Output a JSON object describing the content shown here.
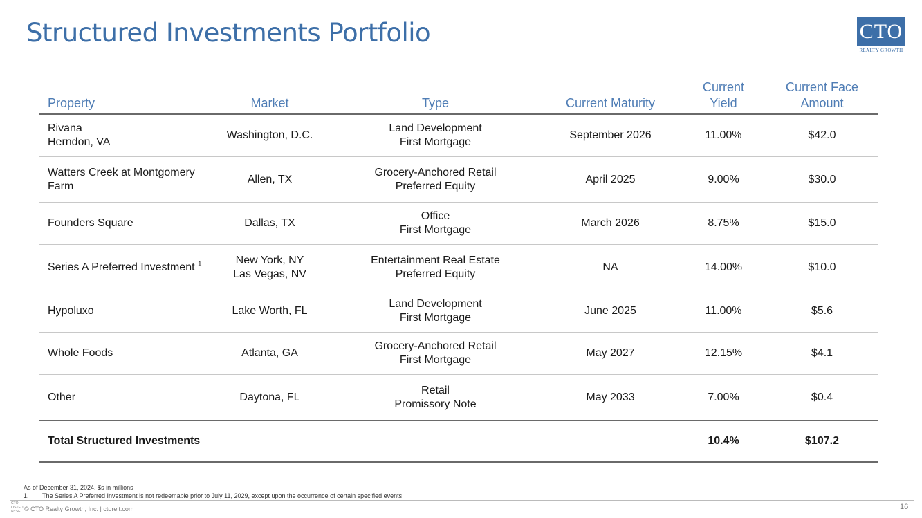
{
  "title": "Structured Investments Portfolio",
  "logo": {
    "text": "CTO",
    "tagline": "REALTY GROWTH",
    "color": "#3d6fa8"
  },
  "table": {
    "headers": {
      "property": "Property",
      "market": "Market",
      "type": "Type",
      "maturity": "Current Maturity",
      "yield_line1": "Current",
      "yield_line2": "Yield",
      "face_line1": "Current Face",
      "face_line2": "Amount"
    },
    "rows": [
      {
        "property_l1": "Rivana",
        "property_l2": "Herndon, VA",
        "market_l1": "Washington, D.C.",
        "market_l2": "",
        "type_l1": "Land Development",
        "type_l2": "First Mortgage",
        "maturity": "September 2026",
        "yield": "11.00%",
        "face": "$42.0"
      },
      {
        "property_l1": "Watters Creek at Montgomery",
        "property_l2": "Farm",
        "market_l1": "Allen, TX",
        "market_l2": "",
        "type_l1": "Grocery-Anchored Retail",
        "type_l2": "Preferred Equity",
        "maturity": "April 2025",
        "yield": "9.00%",
        "face": "$30.0"
      },
      {
        "property_l1": "Founders Square",
        "property_l2": "",
        "market_l1": "Dallas, TX",
        "market_l2": "",
        "type_l1": "Office",
        "type_l2": "First Mortgage",
        "maturity": "March 2026",
        "yield": "8.75%",
        "face": "$15.0"
      },
      {
        "property_l1": "Series A Preferred Investment",
        "property_sup": "1",
        "property_l2": "",
        "market_l1": "New York, NY",
        "market_l2": "Las Vegas, NV",
        "type_l1": "Entertainment Real Estate",
        "type_l2": "Preferred Equity",
        "maturity": "NA",
        "yield": "14.00%",
        "face": "$10.0"
      },
      {
        "property_l1": "Hypoluxo",
        "property_l2": "",
        "market_l1": "Lake Worth, FL",
        "market_l2": "",
        "type_l1": "Land Development",
        "type_l2": "First Mortgage",
        "maturity": "June 2025",
        "yield": "11.00%",
        "face": "$5.6"
      },
      {
        "property_l1": "Whole Foods",
        "property_l2": "",
        "market_l1": "Atlanta, GA",
        "market_l2": "",
        "type_l1": "Grocery-Anchored Retail",
        "type_l2": "First Mortgage",
        "maturity": "May 2027",
        "yield": "12.15%",
        "face": "$4.1"
      },
      {
        "property_l1": "Other",
        "property_l2": "",
        "market_l1": "Daytona, FL",
        "market_l2": "",
        "type_l1": "Retail",
        "type_l2": "Promissory Note",
        "maturity": "May 2033",
        "yield": "7.00%",
        "face": "$0.4"
      }
    ],
    "total": {
      "label": "Total Structured Investments",
      "yield": "10.4%",
      "face": "$107.2"
    }
  },
  "footnotes": {
    "note": "As of December 31, 2024. $s in millions",
    "fn1_num": "1.",
    "fn1_text": "The Series A Preferred Investment is not redeemable prior to July 11, 2029, except upon the occurrence of certain specified events"
  },
  "footer": {
    "mini_logo_l1": "CTO",
    "mini_logo_l2": "LISTED",
    "mini_logo_l3": "NYSE",
    "copyright": "© CTO Realty Growth, Inc. | ctoreit.com",
    "page_number": "16"
  }
}
